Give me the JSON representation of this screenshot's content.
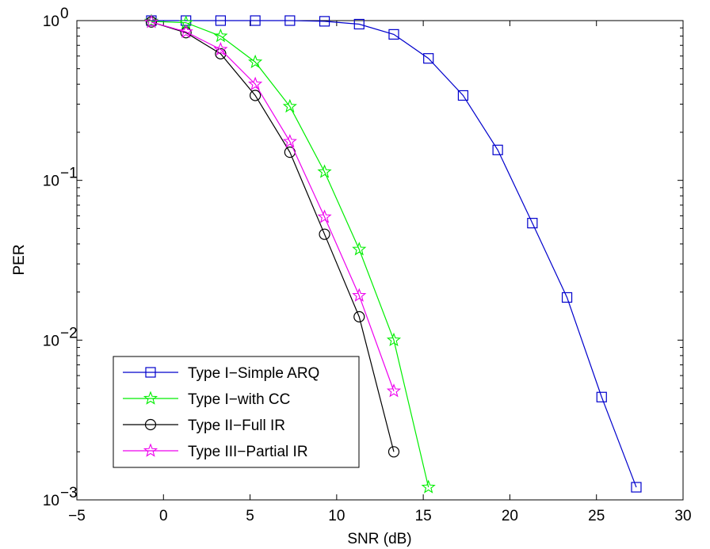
{
  "chart_data": {
    "type": "line",
    "xlabel": "SNR (dB)",
    "ylabel": "PER",
    "xlim": [
      -5,
      30
    ],
    "ylim": [
      0.001,
      1
    ],
    "yscale": "log",
    "xticks": [
      -5,
      0,
      5,
      10,
      15,
      20,
      25,
      30
    ],
    "xtick_labels": [
      "−5",
      "0",
      "5",
      "10",
      "15",
      "20",
      "25",
      "30"
    ],
    "yticks": [
      {
        "value": 1,
        "base": "10",
        "exp": "0"
      },
      {
        "value": 0.1,
        "base": "10",
        "exp": "−1"
      },
      {
        "value": 0.01,
        "base": "10",
        "exp": "−2"
      },
      {
        "value": 0.001,
        "base": "10",
        "exp": "−3"
      }
    ],
    "grid": false,
    "legend_position": "bottom-left",
    "series": [
      {
        "name": "Type I−Simple ARQ",
        "color": "#0000cc",
        "marker": "square",
        "x": [
          -0.7,
          1.3,
          3.3,
          5.3,
          7.3,
          9.3,
          11.3,
          13.3,
          15.3,
          17.3,
          19.3,
          21.3,
          23.3,
          25.3,
          27.3
        ],
        "y": [
          1.0,
          1.0,
          1.0,
          1.0,
          1.0,
          0.99,
          0.95,
          0.82,
          0.58,
          0.34,
          0.155,
          0.054,
          0.0185,
          0.0044,
          0.0012
        ]
      },
      {
        "name": "Type I−with CC",
        "color": "#00ee00",
        "marker": "star",
        "x": [
          -0.7,
          1.3,
          3.3,
          5.3,
          7.3,
          9.3,
          11.3,
          13.3,
          15.3
        ],
        "y": [
          0.99,
          0.97,
          0.8,
          0.55,
          0.29,
          0.113,
          0.037,
          0.01,
          0.0012
        ]
      },
      {
        "name": "Type II−Full IR",
        "color": "#000000",
        "marker": "circle",
        "x": [
          -0.7,
          1.3,
          3.3,
          5.3,
          7.3,
          9.3,
          11.3,
          13.3
        ],
        "y": [
          0.98,
          0.84,
          0.62,
          0.34,
          0.15,
          0.046,
          0.014,
          0.002
        ]
      },
      {
        "name": "Type III−Partial IR",
        "color": "#ee00ee",
        "marker": "star",
        "x": [
          -0.7,
          1.3,
          3.3,
          5.3,
          7.3,
          9.3,
          11.3,
          13.3
        ],
        "y": [
          0.98,
          0.85,
          0.66,
          0.4,
          0.175,
          0.059,
          0.019,
          0.0048
        ]
      }
    ]
  }
}
